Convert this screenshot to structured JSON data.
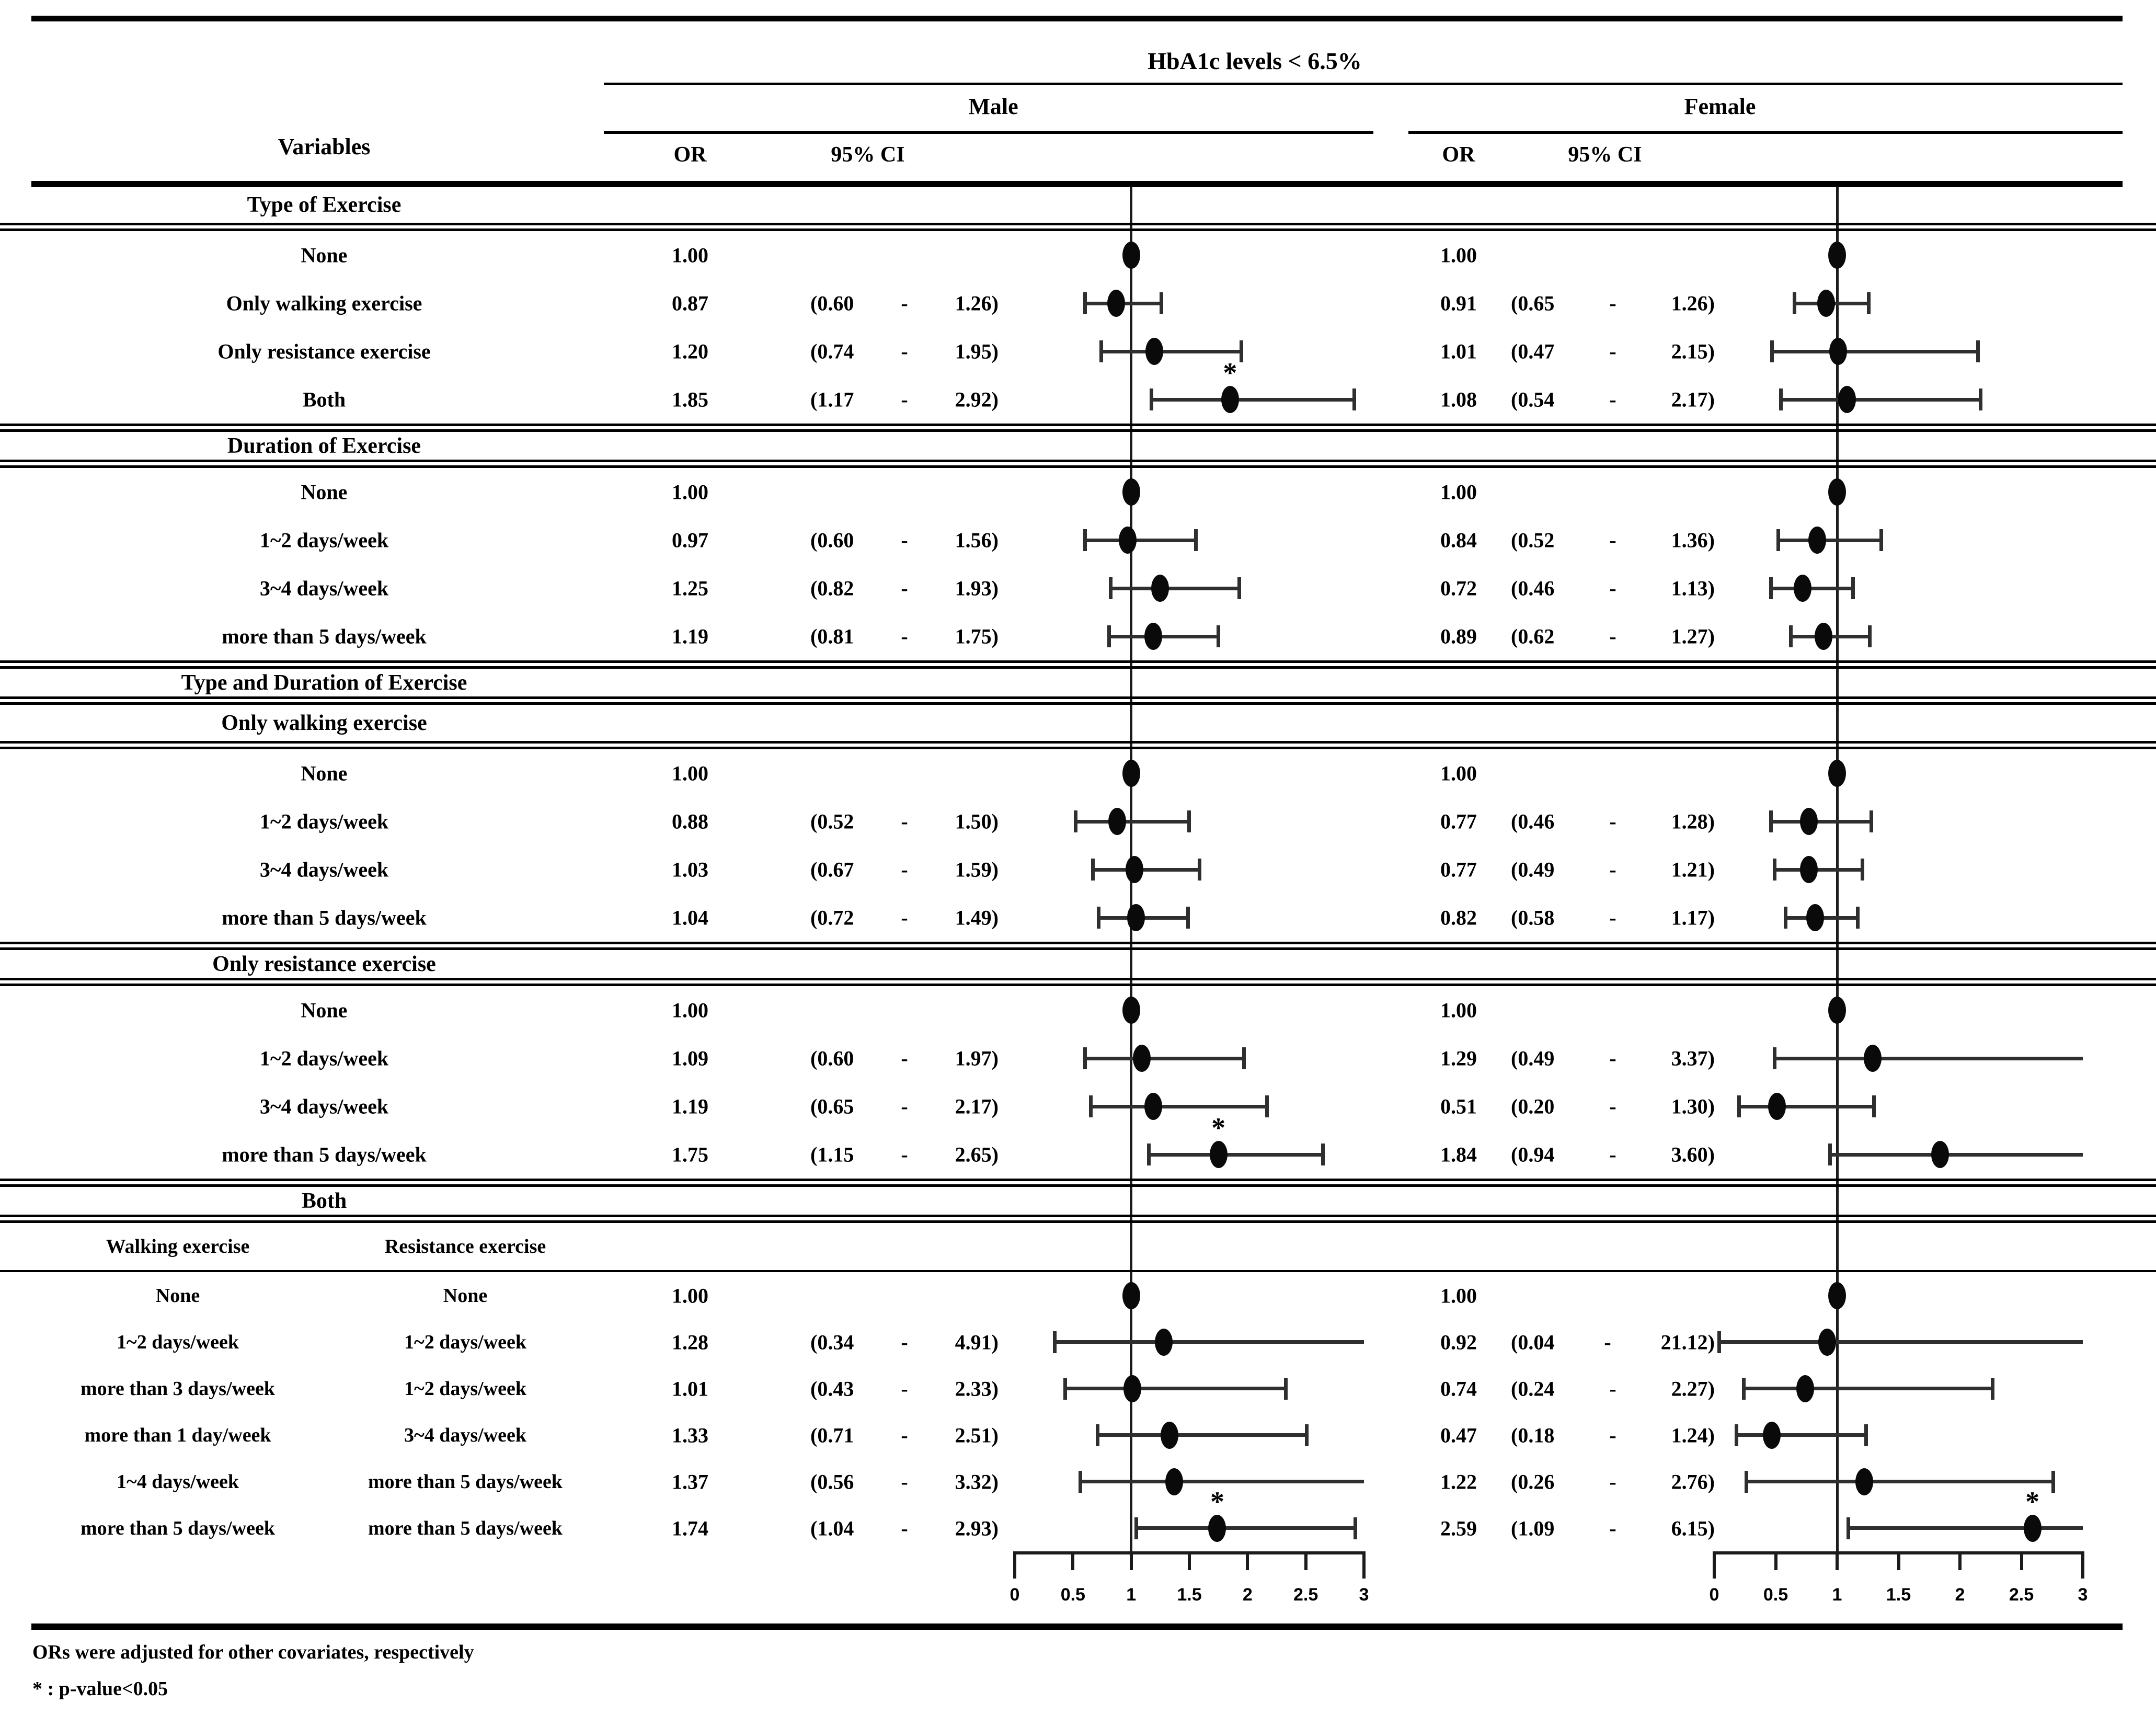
{
  "header": {
    "variables": "Variables",
    "span_title": "HbA1c levels < 6.5%",
    "male": "Male",
    "female": "Female",
    "or": "OR",
    "ci": "95% CI"
  },
  "footnotes": [
    "ORs were adjusted for other covariates, respectively",
    "* : p-value<0.05"
  ],
  "chart_data": {
    "type": "scatter",
    "variant": "forest-plot-with-table",
    "title": "HbA1c levels < 6.5%",
    "panels": [
      "Male",
      "Female"
    ],
    "xlim": [
      0,
      3
    ],
    "x_ticks": [
      "0",
      "0.5",
      "1",
      "1.5",
      "2",
      "2.5",
      "3"
    ],
    "reference_line_x": 1,
    "legend": "dot = OR, horizontal bar = 95% CI, * = p-value<0.05",
    "rows": [
      {
        "t": "sec",
        "label": "Type of Exercise"
      },
      {
        "t": "d",
        "label": "None",
        "m": {
          "or": "1.00"
        },
        "f": {
          "or": "1.00"
        }
      },
      {
        "t": "d",
        "label": "Only walking exercise",
        "m": {
          "or": "0.87",
          "lo": "0.60",
          "hi": "1.26"
        },
        "f": {
          "or": "0.91",
          "lo": "0.65",
          "hi": "1.26"
        }
      },
      {
        "t": "d",
        "label": "Only resistance exercise",
        "m": {
          "or": "1.20",
          "lo": "0.74",
          "hi": "1.95"
        },
        "f": {
          "or": "1.01",
          "lo": "0.47",
          "hi": "2.15"
        }
      },
      {
        "t": "d",
        "label": "Both",
        "m": {
          "or": "1.85",
          "lo": "1.17",
          "hi": "2.92",
          "sig": true
        },
        "f": {
          "or": "1.08",
          "lo": "0.54",
          "hi": "2.17"
        }
      },
      {
        "t": "sec",
        "label": "Duration of Exercise"
      },
      {
        "t": "d",
        "label": "None",
        "m": {
          "or": "1.00"
        },
        "f": {
          "or": "1.00"
        }
      },
      {
        "t": "d",
        "label": "1~2 days/week",
        "m": {
          "or": "0.97",
          "lo": "0.60",
          "hi": "1.56"
        },
        "f": {
          "or": "0.84",
          "lo": "0.52",
          "hi": "1.36"
        }
      },
      {
        "t": "d",
        "label": "3~4 days/week",
        "m": {
          "or": "1.25",
          "lo": "0.82",
          "hi": "1.93"
        },
        "f": {
          "or": "0.72",
          "lo": "0.46",
          "hi": "1.13"
        }
      },
      {
        "t": "d",
        "label": "more than 5 days/week",
        "m": {
          "or": "1.19",
          "lo": "0.81",
          "hi": "1.75"
        },
        "f": {
          "or": "0.89",
          "lo": "0.62",
          "hi": "1.27"
        }
      },
      {
        "t": "sec",
        "label": "Type and Duration of Exercise"
      },
      {
        "t": "sec",
        "label": "Only walking exercise"
      },
      {
        "t": "d",
        "label": "None",
        "m": {
          "or": "1.00"
        },
        "f": {
          "or": "1.00"
        }
      },
      {
        "t": "d",
        "label": "1~2 days/week",
        "m": {
          "or": "0.88",
          "lo": "0.52",
          "hi": "1.50"
        },
        "f": {
          "or": "0.77",
          "lo": "0.46",
          "hi": "1.28"
        }
      },
      {
        "t": "d",
        "label": "3~4 days/week",
        "m": {
          "or": "1.03",
          "lo": "0.67",
          "hi": "1.59"
        },
        "f": {
          "or": "0.77",
          "lo": "0.49",
          "hi": "1.21"
        }
      },
      {
        "t": "d",
        "label": "more than 5 days/week",
        "m": {
          "or": "1.04",
          "lo": "0.72",
          "hi": "1.49"
        },
        "f": {
          "or": "0.82",
          "lo": "0.58",
          "hi": "1.17"
        }
      },
      {
        "t": "sec",
        "label": "Only resistance exercise"
      },
      {
        "t": "d",
        "label": "None",
        "m": {
          "or": "1.00"
        },
        "f": {
          "or": "1.00"
        }
      },
      {
        "t": "d",
        "label": "1~2 days/week",
        "m": {
          "or": "1.09",
          "lo": "0.60",
          "hi": "1.97"
        },
        "f": {
          "or": "1.29",
          "lo": "0.49",
          "hi": "3.37"
        }
      },
      {
        "t": "d",
        "label": "3~4 days/week",
        "m": {
          "or": "1.19",
          "lo": "0.65",
          "hi": "2.17"
        },
        "f": {
          "or": "0.51",
          "lo": "0.20",
          "hi": "1.30"
        }
      },
      {
        "t": "d",
        "label": "more than 5 days/week",
        "m": {
          "or": "1.75",
          "lo": "1.15",
          "hi": "2.65",
          "sig": true
        },
        "f": {
          "or": "1.84",
          "lo": "0.94",
          "hi": "3.60"
        }
      },
      {
        "t": "sec",
        "label": "Both"
      },
      {
        "t": "sub",
        "w": "Walking exercise",
        "r": "Resistance exercise"
      },
      {
        "t": "d2",
        "w": "None",
        "r": "None",
        "m": {
          "or": "1.00"
        },
        "f": {
          "or": "1.00"
        }
      },
      {
        "t": "d2",
        "w": "1~2 days/week",
        "r": "1~2 days/week",
        "m": {
          "or": "1.28",
          "lo": "0.34",
          "hi": "4.91"
        },
        "f": {
          "or": "0.92",
          "lo": "0.04",
          "hi": "21.12"
        }
      },
      {
        "t": "d2",
        "w": "more than 3 days/week",
        "r": "1~2 days/week",
        "m": {
          "or": "1.01",
          "lo": "0.43",
          "hi": "2.33"
        },
        "f": {
          "or": "0.74",
          "lo": "0.24",
          "hi": "2.27"
        }
      },
      {
        "t": "d2",
        "w": "more than 1 day/week",
        "r": "3~4 days/week",
        "m": {
          "or": "1.33",
          "lo": "0.71",
          "hi": "2.51"
        },
        "f": {
          "or": "0.47",
          "lo": "0.18",
          "hi": "1.24"
        }
      },
      {
        "t": "d2",
        "w": "1~4 days/week",
        "r": "more than 5 days/week",
        "m": {
          "or": "1.37",
          "lo": "0.56",
          "hi": "3.32"
        },
        "f": {
          "or": "1.22",
          "lo": "0.26",
          "hi": "2.76"
        }
      },
      {
        "t": "d2",
        "w": "more than 5 days/week",
        "r": "more than 5 days/week",
        "m": {
          "or": "1.74",
          "lo": "1.04",
          "hi": "2.93",
          "sig": true
        },
        "f": {
          "or": "2.59",
          "lo": "1.09",
          "hi": "6.15",
          "sig": true
        }
      }
    ]
  }
}
